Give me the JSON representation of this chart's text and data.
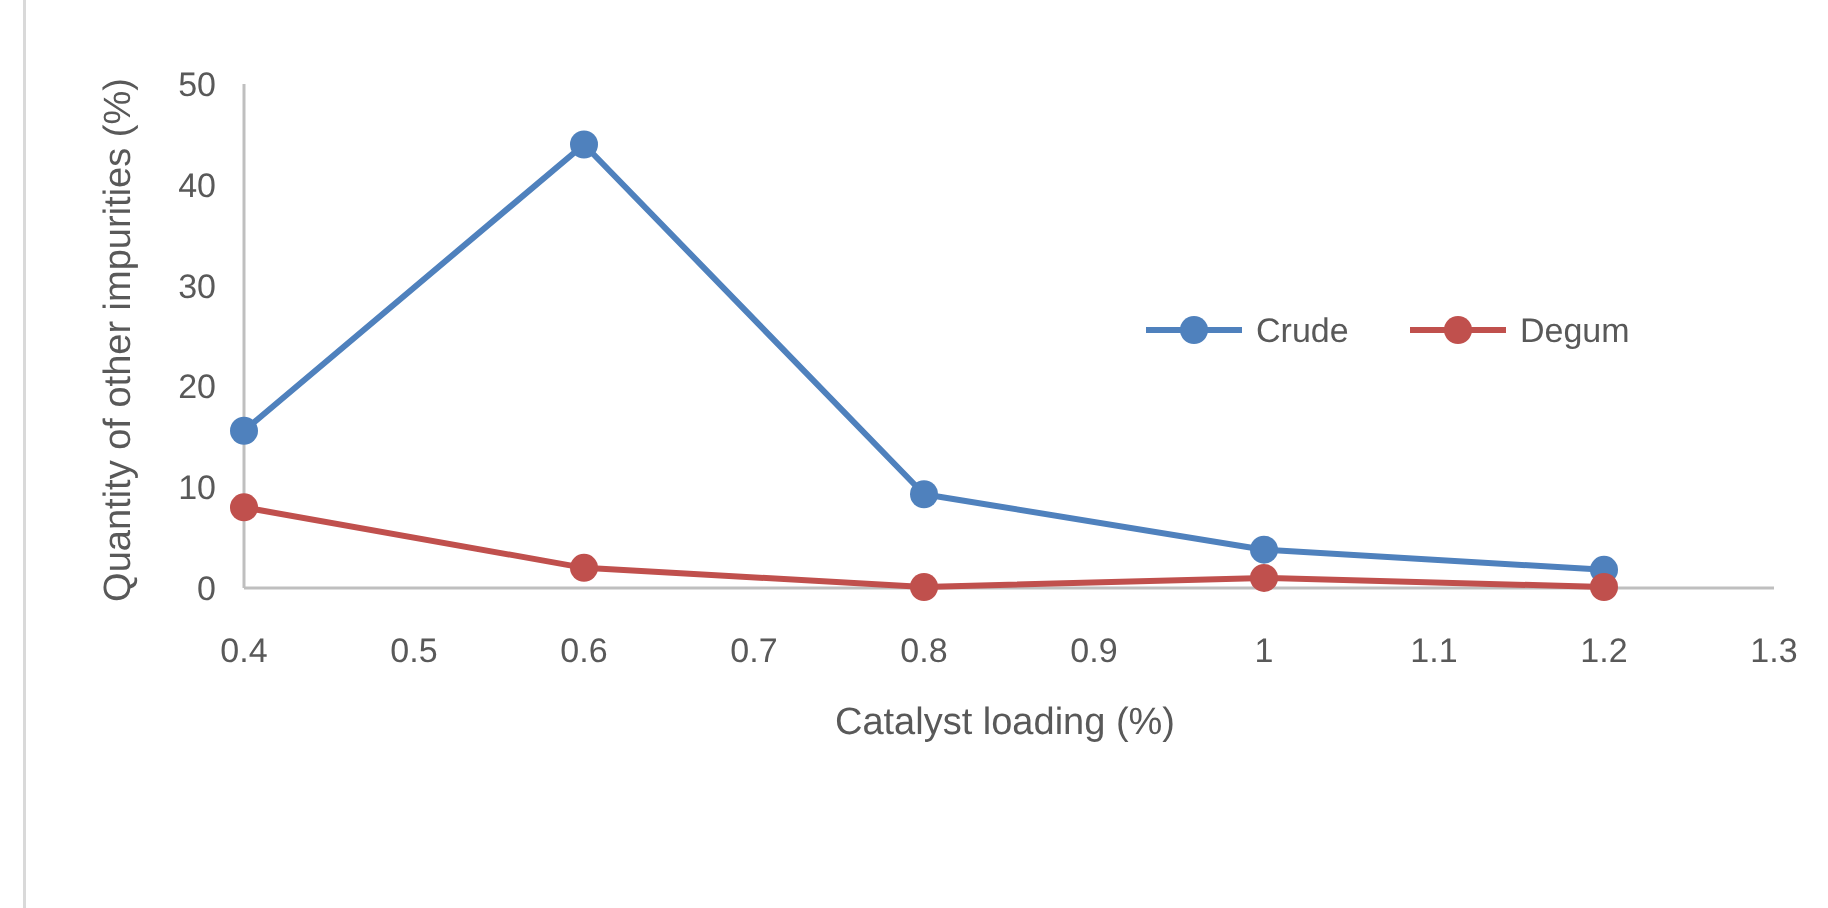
{
  "chart_data": {
    "type": "line",
    "xlabel": "Catalyst loading (%)",
    "ylabel": "Quantity of other impurities (%)",
    "x": [
      0.4,
      0.6,
      0.8,
      1,
      1.2
    ],
    "series": [
      {
        "name": "Crude",
        "color": "#4f81bd",
        "values": [
          15.6,
          44,
          9.3,
          3.8,
          1.8
        ]
      },
      {
        "name": "Degum",
        "color": "#c0504d",
        "values": [
          8,
          2,
          0.1,
          1,
          0.1
        ]
      }
    ],
    "xlim": [
      0.4,
      1.3
    ],
    "xticks": [
      0.4,
      0.5,
      0.6,
      0.7,
      0.8,
      0.9,
      1,
      1.1,
      1.2,
      1.3
    ],
    "ylim": [
      0,
      50
    ],
    "yticks": [
      0,
      10,
      20,
      30,
      40,
      50
    ],
    "grid": false,
    "legend": "right",
    "marker": "circle",
    "line_style": "solid"
  }
}
